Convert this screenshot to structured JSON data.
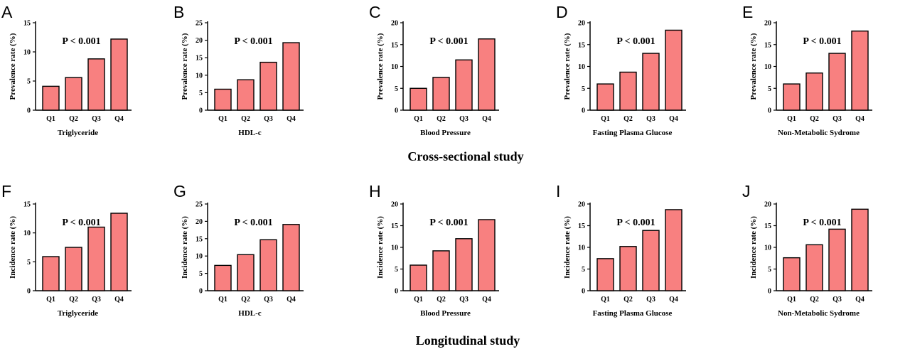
{
  "colors": {
    "bar_fill": "#f88080",
    "axis": "#000000"
  },
  "sections": {
    "cross_sectional": "Cross-sectional study",
    "longitudinal": "Longitudinal study"
  },
  "chart_data": [
    {
      "panel": "A",
      "type": "bar",
      "categories": [
        "Q1",
        "Q2",
        "Q3",
        "Q4"
      ],
      "values": [
        4.1,
        5.6,
        8.8,
        12.2
      ],
      "ylim": [
        0,
        15
      ],
      "yticks": [
        0,
        5,
        10,
        15
      ],
      "ylabel": "Prevalence rate (%)",
      "xlabel": "Triglyceride",
      "annotation": "P < 0.001"
    },
    {
      "panel": "B",
      "type": "bar",
      "categories": [
        "Q1",
        "Q2",
        "Q3",
        "Q4"
      ],
      "values": [
        6.0,
        8.7,
        13.7,
        19.3
      ],
      "ylim": [
        0,
        25
      ],
      "yticks": [
        0,
        5,
        10,
        15,
        20,
        25
      ],
      "ylabel": "Prevalence rate (%)",
      "xlabel": "HDL-c",
      "annotation": "P < 0.001"
    },
    {
      "panel": "C",
      "type": "bar",
      "categories": [
        "Q1",
        "Q2",
        "Q3",
        "Q4"
      ],
      "values": [
        5.0,
        7.5,
        11.5,
        16.3
      ],
      "ylim": [
        0,
        20
      ],
      "yticks": [
        0,
        5,
        10,
        15,
        20
      ],
      "ylabel": "Prevalence rate (%)",
      "xlabel": "Blood Pressure",
      "annotation": "P < 0.001"
    },
    {
      "panel": "D",
      "type": "bar",
      "categories": [
        "Q1",
        "Q2",
        "Q3",
        "Q4"
      ],
      "values": [
        6.0,
        8.7,
        13.0,
        18.3
      ],
      "ylim": [
        0,
        20
      ],
      "yticks": [
        0,
        5,
        10,
        15,
        20
      ],
      "ylabel": "Prevalence rate (%)",
      "xlabel": "Fasting Plasma Glucose",
      "annotation": "P < 0.001"
    },
    {
      "panel": "E",
      "type": "bar",
      "categories": [
        "Q1",
        "Q2",
        "Q3",
        "Q4"
      ],
      "values": [
        6.0,
        8.5,
        13.0,
        18.1
      ],
      "ylim": [
        0,
        20
      ],
      "yticks": [
        0,
        5,
        10,
        15,
        20
      ],
      "ylabel": "Prevalence rate (%)",
      "xlabel": "Non-Metabolic Sydrome",
      "annotation": "P < 0.001"
    },
    {
      "panel": "F",
      "type": "bar",
      "categories": [
        "Q1",
        "Q2",
        "Q3",
        "Q4"
      ],
      "values": [
        5.9,
        7.5,
        11.0,
        13.4
      ],
      "ylim": [
        0,
        15
      ],
      "yticks": [
        0,
        5,
        10,
        15
      ],
      "ylabel": "Incidence rate (%)",
      "xlabel": "Triglyceride",
      "annotation": "P < 0.001"
    },
    {
      "panel": "G",
      "type": "bar",
      "categories": [
        "Q1",
        "Q2",
        "Q3",
        "Q4"
      ],
      "values": [
        7.3,
        10.4,
        14.7,
        19.1
      ],
      "ylim": [
        0,
        25
      ],
      "yticks": [
        0,
        5,
        10,
        15,
        20,
        25
      ],
      "ylabel": "Incidence rate (%)",
      "xlabel": "HDL-c",
      "annotation": "P < 0.001"
    },
    {
      "panel": "H",
      "type": "bar",
      "categories": [
        "Q1",
        "Q2",
        "Q3",
        "Q4"
      ],
      "values": [
        5.9,
        9.2,
        12.0,
        16.4
      ],
      "ylim": [
        0,
        20
      ],
      "yticks": [
        0,
        5,
        10,
        15,
        20
      ],
      "ylabel": "Incidence rate (%)",
      "xlabel": "Blood Pressure",
      "annotation": "P < 0.001"
    },
    {
      "panel": "I",
      "type": "bar",
      "categories": [
        "Q1",
        "Q2",
        "Q3",
        "Q4"
      ],
      "values": [
        7.4,
        10.2,
        13.9,
        18.7
      ],
      "ylim": [
        0,
        20
      ],
      "yticks": [
        0,
        5,
        10,
        15,
        20
      ],
      "ylabel": "Incidence rate (%)",
      "xlabel": "Fasting Plasma Glucose",
      "annotation": "P < 0.001"
    },
    {
      "panel": "J",
      "type": "bar",
      "categories": [
        "Q1",
        "Q2",
        "Q3",
        "Q4"
      ],
      "values": [
        7.6,
        10.6,
        14.2,
        18.8
      ],
      "ylim": [
        0,
        20
      ],
      "yticks": [
        0,
        5,
        10,
        15,
        20
      ],
      "ylabel": "Incidence rate (%)",
      "xlabel": "Non-Metabolic Sydrome",
      "annotation": "P < 0.001"
    }
  ]
}
